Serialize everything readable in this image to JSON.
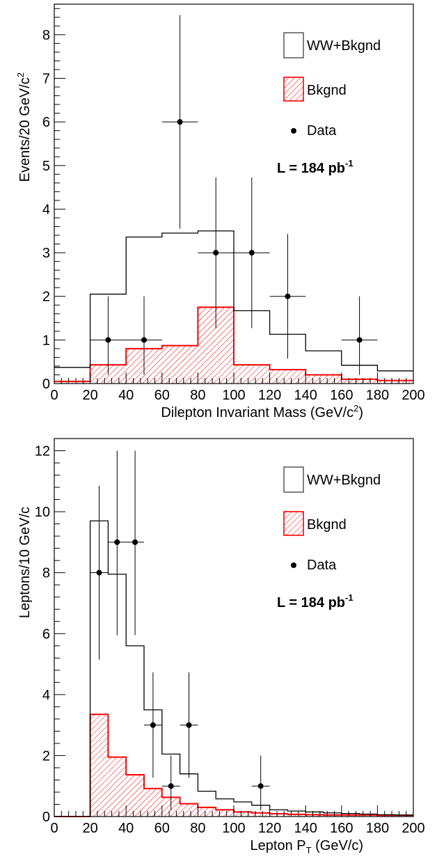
{
  "chart_data": [
    {
      "type": "histogram",
      "xlabel": "Dilepton Invariant Mass (GeV/c",
      "xlabel_sup": "2",
      "xlabel_tail": ")",
      "ylabel": "Events/20 GeV/c",
      "ylabel_sup": "2",
      "xlim": [
        0,
        200
      ],
      "ylim": [
        0,
        8.7
      ],
      "x_ticks": [
        "0",
        "20",
        "40",
        "60",
        "80",
        "100",
        "120",
        "140",
        "160",
        "180",
        "200"
      ],
      "y_ticks": [
        "0",
        "1",
        "2",
        "3",
        "4",
        "5",
        "6",
        "7",
        "8"
      ],
      "bin_edges": [
        0,
        20,
        40,
        60,
        80,
        100,
        120,
        140,
        160,
        180,
        200
      ],
      "series": [
        {
          "name": "WW+Bkgnd",
          "style": "line",
          "color": "#000000",
          "values": [
            0.37,
            2.05,
            3.36,
            3.45,
            3.5,
            1.67,
            1.13,
            0.75,
            0.42,
            0.29
          ]
        },
        {
          "name": "Bkgnd",
          "style": "hatched",
          "color": "#ff0000",
          "values": [
            0.05,
            0.43,
            0.8,
            0.87,
            1.75,
            0.43,
            0.32,
            0.2,
            0.1,
            0.07
          ]
        }
      ],
      "data_points": {
        "name": "Data",
        "points": [
          {
            "x": 30,
            "y": 1,
            "xerr": 10,
            "ylo": 0.2,
            "yhi": 2.0
          },
          {
            "x": 50,
            "y": 1,
            "xerr": 10,
            "ylo": 0.2,
            "yhi": 2.0
          },
          {
            "x": 70,
            "y": 6,
            "xerr": 10,
            "ylo": 3.55,
            "yhi": 8.45
          },
          {
            "x": 90,
            "y": 3,
            "xerr": 10,
            "ylo": 1.27,
            "yhi": 4.73
          },
          {
            "x": 110,
            "y": 3,
            "xerr": 10,
            "ylo": 1.27,
            "yhi": 4.73
          },
          {
            "x": 130,
            "y": 2,
            "xerr": 10,
            "ylo": 0.57,
            "yhi": 3.43
          },
          {
            "x": 170,
            "y": 1,
            "xerr": 10,
            "ylo": 0.2,
            "yhi": 2.0
          }
        ]
      },
      "legend": {
        "placement": "top-right",
        "entries": [
          "WW+Bkgnd",
          "Bkgnd",
          "Data"
        ]
      },
      "annotation": {
        "text": "L = 184 pb",
        "sup": "-1"
      }
    },
    {
      "type": "histogram",
      "xlabel": "Lepton P",
      "xlabel_sub": "T",
      "xlabel_tail": " (GeV/c)",
      "ylabel": "Leptons/10 GeV/c",
      "xlim": [
        0,
        200
      ],
      "ylim": [
        0,
        12.4
      ],
      "x_ticks": [
        "0",
        "20",
        "40",
        "60",
        "80",
        "100",
        "120",
        "140",
        "160",
        "180",
        "200"
      ],
      "y_ticks": [
        "0",
        "2",
        "4",
        "6",
        "8",
        "10",
        "12"
      ],
      "bin_edges": [
        0,
        10,
        20,
        30,
        40,
        50,
        60,
        70,
        80,
        90,
        100,
        110,
        120,
        130,
        140,
        150,
        160,
        170,
        180,
        190,
        200
      ],
      "series": [
        {
          "name": "WW+Bkgnd",
          "style": "line",
          "color": "#000000",
          "values": [
            0,
            0,
            9.7,
            7.95,
            5.6,
            3.5,
            2.05,
            1.4,
            0.83,
            0.58,
            0.48,
            0.37,
            0.22,
            0.18,
            0.15,
            0.12,
            0.1,
            0.08,
            0.06,
            0.05
          ]
        },
        {
          "name": "Bkgnd",
          "style": "hatched",
          "color": "#ff0000",
          "values": [
            0,
            0,
            3.35,
            1.95,
            1.37,
            0.92,
            0.63,
            0.42,
            0.3,
            0.22,
            0.15,
            0.12,
            0.09,
            0.07,
            0.06,
            0.05,
            0.05,
            0.05,
            0.04,
            0.04
          ]
        }
      ],
      "data_points": {
        "name": "Data",
        "points": [
          {
            "x": 25,
            "y": 8,
            "xerr": 5,
            "ylo": 5.15,
            "yhi": 10.85
          },
          {
            "x": 35,
            "y": 9,
            "xerr": 5,
            "ylo": 5.95,
            "yhi": 12.0
          },
          {
            "x": 45,
            "y": 9,
            "xerr": 5,
            "ylo": 5.95,
            "yhi": 12.0
          },
          {
            "x": 55,
            "y": 3,
            "xerr": 5,
            "ylo": 1.27,
            "yhi": 4.73
          },
          {
            "x": 65,
            "y": 1,
            "xerr": 5,
            "ylo": 0.2,
            "yhi": 2.0
          },
          {
            "x": 75,
            "y": 3,
            "xerr": 5,
            "ylo": 1.27,
            "yhi": 4.73
          },
          {
            "x": 115,
            "y": 1,
            "xerr": 5,
            "ylo": 0.2,
            "yhi": 2.0
          }
        ]
      },
      "legend": {
        "placement": "top-right",
        "entries": [
          "WW+Bkgnd",
          "Bkgnd",
          "Data"
        ]
      },
      "annotation": {
        "text": "L = 184 pb",
        "sup": "-1"
      }
    }
  ]
}
